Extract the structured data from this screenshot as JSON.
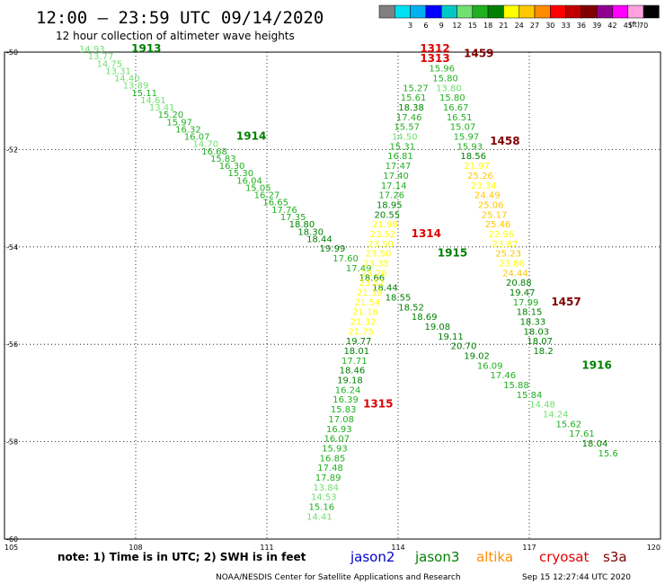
{
  "header": {
    "title": "12:00 – 23:59 UTC 09/14/2020",
    "subtitle": "12 hour collection of altimeter wave heights"
  },
  "colorbar": {
    "unit": "(ft)",
    "bins": [
      {
        "label": "",
        "color": "#808080"
      },
      {
        "label": "3",
        "color": "#00e0f0"
      },
      {
        "label": "6",
        "color": "#00b0f0"
      },
      {
        "label": "9",
        "color": "#0000ff"
      },
      {
        "label": "12",
        "color": "#00c8c8"
      },
      {
        "label": "15",
        "color": "#70e070"
      },
      {
        "label": "18",
        "color": "#20b020"
      },
      {
        "label": "21",
        "color": "#008000"
      },
      {
        "label": "24",
        "color": "#ffff00"
      },
      {
        "label": "27",
        "color": "#ffc800"
      },
      {
        "label": "30",
        "color": "#ff8c00"
      },
      {
        "label": "33",
        "color": "#ff0000"
      },
      {
        "label": "36",
        "color": "#c00000"
      },
      {
        "label": "39",
        "color": "#800000"
      },
      {
        "label": "42",
        "color": "#900090"
      },
      {
        "label": "45",
        "color": "#ff00ff"
      },
      {
        "label": "70",
        "color": "#ffa0e0"
      },
      {
        "label": "",
        "color": "#000000"
      }
    ]
  },
  "footer": {
    "note": "note:  1) Time is in UTC;  2) SWH is in feet",
    "credit": "NOAA/NESDIS Center for Satellite Applications and Research",
    "timestamp": "Sep 15 12:27:44 UTC 2020"
  },
  "legend": [
    {
      "label": "jason2",
      "color": "#0000cc"
    },
    {
      "label": "jason3",
      "color": "#008000"
    },
    {
      "label": "altika",
      "color": "#ff8c00"
    },
    {
      "label": "cryosat",
      "color": "#e00000"
    },
    {
      "label": "s3a",
      "color": "#800000"
    }
  ],
  "chart_data": {
    "type": "scatter",
    "xlim": [
      105,
      120
    ],
    "ylim": [
      -60,
      -50
    ],
    "xticks": [
      "105",
      "108",
      "111",
      "114",
      "117",
      "120"
    ],
    "yticks": [
      "-50",
      "-52",
      "-54",
      "-56",
      "-58",
      "-60"
    ],
    "grid": true,
    "pass_labels": [
      {
        "text": "1913",
        "lon": 107.9,
        "lat": -50.0,
        "color": "#008000"
      },
      {
        "text": "1914",
        "lon": 110.3,
        "lat": -51.8,
        "color": "#008000"
      },
      {
        "text": "1915",
        "lon": 114.9,
        "lat": -54.2,
        "color": "#008000"
      },
      {
        "text": "1916",
        "lon": 118.2,
        "lat": -56.5,
        "color": "#008000"
      },
      {
        "text": "1312",
        "lon": 114.5,
        "lat": -50.0,
        "color": "#e00000"
      },
      {
        "text": "1313",
        "lon": 114.5,
        "lat": -50.2,
        "color": "#e00000"
      },
      {
        "text": "1314",
        "lon": 114.3,
        "lat": -53.8,
        "color": "#e00000"
      },
      {
        "text": "1315",
        "lon": 113.2,
        "lat": -57.3,
        "color": "#e00000"
      },
      {
        "text": "1459",
        "lon": 115.5,
        "lat": -50.1,
        "color": "#800000"
      },
      {
        "text": "1458",
        "lon": 116.1,
        "lat": -51.9,
        "color": "#800000"
      },
      {
        "text": "1457",
        "lon": 117.5,
        "lat": -55.2,
        "color": "#800000"
      }
    ],
    "tracks": [
      {
        "name": "1913-1914",
        "points": [
          {
            "lon": 107.0,
            "lat": -50.0,
            "v": "14.93"
          },
          {
            "lon": 107.2,
            "lat": -50.15,
            "v": "13.77"
          },
          {
            "lon": 107.4,
            "lat": -50.3,
            "v": "14.75"
          },
          {
            "lon": 107.6,
            "lat": -50.45,
            "v": "13.31"
          },
          {
            "lon": 107.8,
            "lat": -50.6,
            "v": "14.40"
          },
          {
            "lon": 108.0,
            "lat": -50.75,
            "v": "13.89"
          },
          {
            "lon": 108.2,
            "lat": -50.9,
            "v": "15.11"
          },
          {
            "lon": 108.4,
            "lat": -51.05,
            "v": "14.61"
          },
          {
            "lon": 108.6,
            "lat": -51.2,
            "v": "13.41"
          },
          {
            "lon": 108.8,
            "lat": -51.35,
            "v": "15.20"
          },
          {
            "lon": 109.0,
            "lat": -51.5,
            "v": "15.97"
          },
          {
            "lon": 109.2,
            "lat": -51.65,
            "v": "16.32"
          },
          {
            "lon": 109.4,
            "lat": -51.8,
            "v": "16.07"
          },
          {
            "lon": 109.6,
            "lat": -51.95,
            "v": "14.70"
          },
          {
            "lon": 109.8,
            "lat": -52.1,
            "v": "16.68"
          },
          {
            "lon": 110.0,
            "lat": -52.25,
            "v": "15.83"
          },
          {
            "lon": 110.2,
            "lat": -52.4,
            "v": "16.30"
          },
          {
            "lon": 110.4,
            "lat": -52.55,
            "v": "15.30"
          },
          {
            "lon": 110.6,
            "lat": -52.7,
            "v": "16.04"
          },
          {
            "lon": 110.8,
            "lat": -52.85,
            "v": "15.05"
          },
          {
            "lon": 111.0,
            "lat": -53.0,
            "v": "16.27"
          },
          {
            "lon": 111.2,
            "lat": -53.15,
            "v": "16.65"
          },
          {
            "lon": 111.4,
            "lat": -53.3,
            "v": "17.76"
          },
          {
            "lon": 111.6,
            "lat": -53.45,
            "v": "17.35"
          },
          {
            "lon": 111.8,
            "lat": -53.6,
            "v": "18.80"
          },
          {
            "lon": 112.0,
            "lat": -53.75,
            "v": "18.30"
          },
          {
            "lon": 112.2,
            "lat": -53.9,
            "v": "18.44"
          },
          {
            "lon": 112.5,
            "lat": -54.1,
            "v": "19.99"
          },
          {
            "lon": 112.8,
            "lat": -54.3,
            "v": "17.60"
          },
          {
            "lon": 113.1,
            "lat": -54.5,
            "v": "17.49"
          },
          {
            "lon": 113.4,
            "lat": -54.7,
            "v": "18.66"
          },
          {
            "lon": 113.7,
            "lat": -54.9,
            "v": "18.44"
          },
          {
            "lon": 114.0,
            "lat": -55.1,
            "v": "18.55"
          },
          {
            "lon": 114.3,
            "lat": -55.3,
            "v": "18.52"
          },
          {
            "lon": 114.6,
            "lat": -55.5,
            "v": "18.69"
          },
          {
            "lon": 114.9,
            "lat": -55.7,
            "v": "19.08"
          },
          {
            "lon": 115.2,
            "lat": -55.9,
            "v": "19.11"
          },
          {
            "lon": 115.5,
            "lat": -56.1,
            "v": "20.70"
          },
          {
            "lon": 115.8,
            "lat": -56.3,
            "v": "19.02"
          },
          {
            "lon": 116.1,
            "lat": -56.5,
            "v": "16.09"
          },
          {
            "lon": 116.4,
            "lat": -56.7,
            "v": "17.46"
          },
          {
            "lon": 116.7,
            "lat": -56.9,
            "v": "15.88"
          },
          {
            "lon": 117.0,
            "lat": -57.1,
            "v": "15.84"
          },
          {
            "lon": 117.3,
            "lat": -57.3,
            "v": "14.48"
          },
          {
            "lon": 117.6,
            "lat": -57.5,
            "v": "14.24"
          },
          {
            "lon": 117.9,
            "lat": -57.7,
            "v": "15.62"
          },
          {
            "lon": 118.2,
            "lat": -57.9,
            "v": "17.61"
          },
          {
            "lon": 118.5,
            "lat": -58.1,
            "v": "18.04"
          },
          {
            "lon": 118.8,
            "lat": -58.3,
            "v": "15.6"
          }
        ]
      },
      {
        "name": "1315-1314",
        "points": [
          {
            "lon": 112.2,
            "lat": -59.6,
            "v": "14.41"
          },
          {
            "lon": 112.25,
            "lat": -59.4,
            "v": "15.16"
          },
          {
            "lon": 112.3,
            "lat": -59.2,
            "v": "14.53"
          },
          {
            "lon": 112.35,
            "lat": -59.0,
            "v": "13.84"
          },
          {
            "lon": 112.4,
            "lat": -58.8,
            "v": "17.89"
          },
          {
            "lon": 112.45,
            "lat": -58.6,
            "v": "17.48"
          },
          {
            "lon": 112.5,
            "lat": -58.4,
            "v": "16.85"
          },
          {
            "lon": 112.55,
            "lat": -58.2,
            "v": "15.93"
          },
          {
            "lon": 112.6,
            "lat": -58.0,
            "v": "16.07"
          },
          {
            "lon": 112.65,
            "lat": -57.8,
            "v": "16.93"
          },
          {
            "lon": 112.7,
            "lat": -57.6,
            "v": "17.08"
          },
          {
            "lon": 112.75,
            "lat": -57.4,
            "v": "15.83"
          },
          {
            "lon": 112.8,
            "lat": -57.2,
            "v": "16.39"
          },
          {
            "lon": 112.85,
            "lat": -57.0,
            "v": "16.24"
          },
          {
            "lon": 112.9,
            "lat": -56.8,
            "v": "19.18"
          },
          {
            "lon": 112.95,
            "lat": -56.6,
            "v": "18.46"
          },
          {
            "lon": 113.0,
            "lat": -56.4,
            "v": "17.71"
          },
          {
            "lon": 113.05,
            "lat": -56.2,
            "v": "18.01"
          },
          {
            "lon": 113.1,
            "lat": -56.0,
            "v": "19.77"
          },
          {
            "lon": 113.15,
            "lat": -55.8,
            "v": "21.75"
          },
          {
            "lon": 113.2,
            "lat": -55.6,
            "v": "21.32"
          },
          {
            "lon": 113.25,
            "lat": -55.4,
            "v": "21.16"
          },
          {
            "lon": 113.3,
            "lat": -55.2,
            "v": "21.54"
          },
          {
            "lon": 113.35,
            "lat": -55.0,
            "v": "21.39"
          },
          {
            "lon": 113.4,
            "lat": -54.8,
            "v": "23.52"
          },
          {
            "lon": 113.45,
            "lat": -54.6,
            "v": "23.20"
          },
          {
            "lon": 113.5,
            "lat": -54.4,
            "v": "23.35"
          },
          {
            "lon": 113.55,
            "lat": -54.2,
            "v": "23.50"
          },
          {
            "lon": 113.6,
            "lat": -54.0,
            "v": "23.50"
          },
          {
            "lon": 113.65,
            "lat": -53.8,
            "v": "23.52"
          },
          {
            "lon": 113.7,
            "lat": -53.6,
            "v": "21.98"
          },
          {
            "lon": 113.75,
            "lat": -53.4,
            "v": "20.55"
          },
          {
            "lon": 113.8,
            "lat": -53.2,
            "v": "18.95"
          },
          {
            "lon": 113.85,
            "lat": -53.0,
            "v": "17.26"
          },
          {
            "lon": 113.9,
            "lat": -52.8,
            "v": "17.14"
          },
          {
            "lon": 113.95,
            "lat": -52.6,
            "v": "17.40"
          },
          {
            "lon": 114.0,
            "lat": -52.4,
            "v": "17.47"
          },
          {
            "lon": 114.05,
            "lat": -52.2,
            "v": "16.81"
          },
          {
            "lon": 114.1,
            "lat": -52.0,
            "v": "15.31"
          },
          {
            "lon": 114.15,
            "lat": -51.8,
            "v": "14.50"
          },
          {
            "lon": 114.2,
            "lat": -51.6,
            "v": "15.57"
          },
          {
            "lon": 114.25,
            "lat": -51.4,
            "v": "17.46"
          },
          {
            "lon": 114.3,
            "lat": -51.2,
            "v": "18.38"
          },
          {
            "lon": 114.35,
            "lat": -51.0,
            "v": "15.61"
          },
          {
            "lon": 114.4,
            "lat": -50.8,
            "v": "15.27"
          }
        ]
      },
      {
        "name": "1459-1457",
        "points": [
          {
            "lon": 115.0,
            "lat": -50.4,
            "v": "15.96"
          },
          {
            "lon": 115.08,
            "lat": -50.6,
            "v": "15.80"
          },
          {
            "lon": 115.16,
            "lat": -50.8,
            "v": "13.80"
          },
          {
            "lon": 115.24,
            "lat": -51.0,
            "v": "15.80"
          },
          {
            "lon": 115.32,
            "lat": -51.2,
            "v": "16.67"
          },
          {
            "lon": 115.4,
            "lat": -51.4,
            "v": "16.51"
          },
          {
            "lon": 115.48,
            "lat": -51.6,
            "v": "15.07"
          },
          {
            "lon": 115.56,
            "lat": -51.8,
            "v": "15.97"
          },
          {
            "lon": 115.64,
            "lat": -52.0,
            "v": "15.93"
          },
          {
            "lon": 115.72,
            "lat": -52.2,
            "v": "18.56"
          },
          {
            "lon": 115.8,
            "lat": -52.4,
            "v": "21.97"
          },
          {
            "lon": 115.88,
            "lat": -52.6,
            "v": "25.26"
          },
          {
            "lon": 115.96,
            "lat": -52.8,
            "v": "23.34"
          },
          {
            "lon": 116.04,
            "lat": -53.0,
            "v": "24.49"
          },
          {
            "lon": 116.12,
            "lat": -53.2,
            "v": "25.06"
          },
          {
            "lon": 116.2,
            "lat": -53.4,
            "v": "25.17"
          },
          {
            "lon": 116.28,
            "lat": -53.6,
            "v": "25.46"
          },
          {
            "lon": 116.36,
            "lat": -53.8,
            "v": "22.96"
          },
          {
            "lon": 116.44,
            "lat": -54.0,
            "v": "23.87"
          },
          {
            "lon": 116.52,
            "lat": -54.2,
            "v": "25.23"
          },
          {
            "lon": 116.6,
            "lat": -54.4,
            "v": "23.86"
          },
          {
            "lon": 116.68,
            "lat": -54.6,
            "v": "24.44"
          },
          {
            "lon": 116.76,
            "lat": -54.8,
            "v": "20.88"
          },
          {
            "lon": 116.84,
            "lat": -55.0,
            "v": "19.47"
          },
          {
            "lon": 116.92,
            "lat": -55.2,
            "v": "17.99"
          },
          {
            "lon": 117.0,
            "lat": -55.4,
            "v": "18.15"
          },
          {
            "lon": 117.08,
            "lat": -55.6,
            "v": "18.33"
          },
          {
            "lon": 117.16,
            "lat": -55.8,
            "v": "18.03"
          },
          {
            "lon": 117.24,
            "lat": -56.0,
            "v": "18.07"
          },
          {
            "lon": 117.32,
            "lat": -56.2,
            "v": "18.2"
          }
        ]
      }
    ]
  }
}
